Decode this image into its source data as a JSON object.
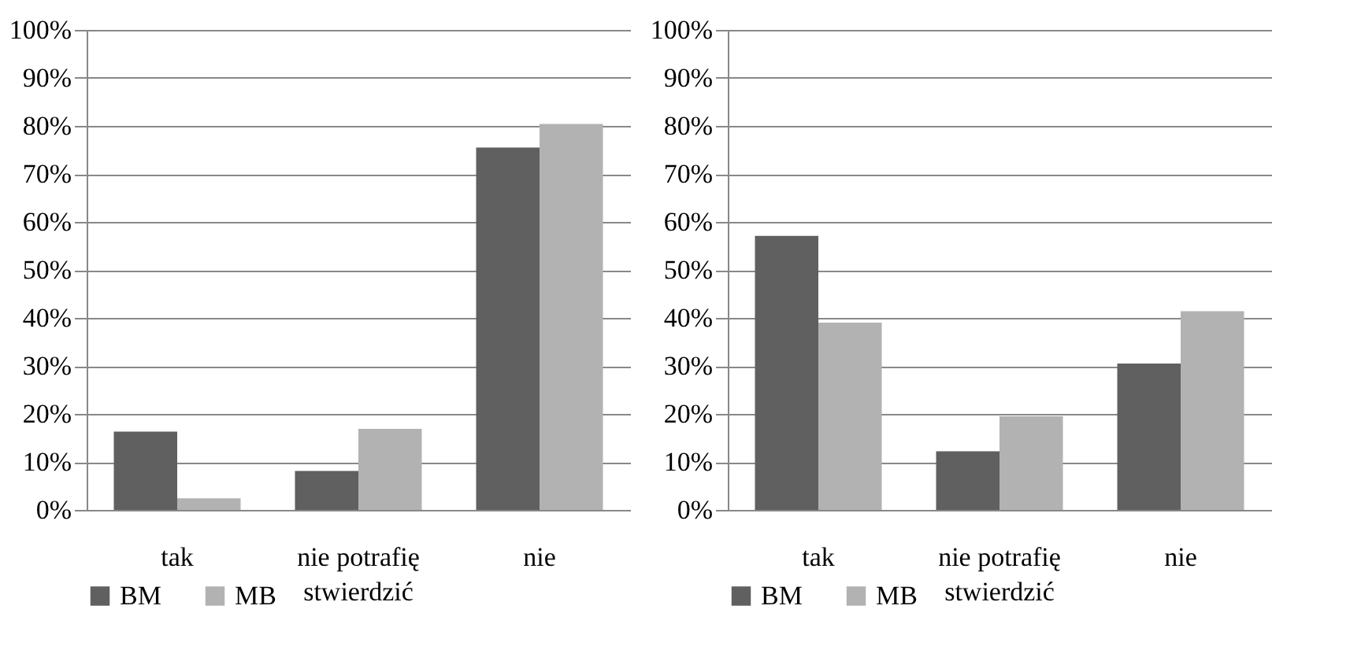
{
  "chart_data": [
    {
      "type": "bar",
      "categories": [
        "tak",
        "nie potrafię\nstwierdzić",
        "nie"
      ],
      "series": [
        {
          "name": "BM",
          "color": "#606060",
          "values": [
            16.3,
            8.1,
            75.5
          ]
        },
        {
          "name": "MB",
          "color": "#b2b2b2",
          "values": [
            2.4,
            16.9,
            80.4
          ]
        }
      ],
      "ylim": [
        0,
        100
      ],
      "yticks": [
        {
          "value": 0,
          "label": "0%"
        },
        {
          "value": 10,
          "label": "10%"
        },
        {
          "value": 20,
          "label": "20%"
        },
        {
          "value": 30,
          "label": "30%"
        },
        {
          "value": 40,
          "label": "40%"
        },
        {
          "value": 50,
          "label": "50%"
        },
        {
          "value": 60,
          "label": "60%"
        },
        {
          "value": 70,
          "label": "70%"
        },
        {
          "value": 80,
          "label": "80%"
        },
        {
          "value": 90,
          "label": "90%"
        },
        {
          "value": 100,
          "label": "100%"
        }
      ],
      "grid": "y",
      "legend": "bottom left"
    },
    {
      "type": "bar",
      "categories": [
        "tak",
        "nie potrafię\nstwierdzić",
        "nie"
      ],
      "series": [
        {
          "name": "BM",
          "color": "#606060",
          "values": [
            57.1,
            12.2,
            30.5
          ]
        },
        {
          "name": "MB",
          "color": "#b2b2b2",
          "values": [
            39.0,
            19.5,
            41.4
          ]
        }
      ],
      "ylim": [
        0,
        100
      ],
      "yticks": [
        {
          "value": 0,
          "label": "0%"
        },
        {
          "value": 10,
          "label": "10%"
        },
        {
          "value": 20,
          "label": "20%"
        },
        {
          "value": 30,
          "label": "30%"
        },
        {
          "value": 40,
          "label": "40%"
        },
        {
          "value": 50,
          "label": "50%"
        },
        {
          "value": 60,
          "label": "60%"
        },
        {
          "value": 70,
          "label": "70%"
        },
        {
          "value": 80,
          "label": "80%"
        },
        {
          "value": 90,
          "label": "90%"
        },
        {
          "value": 100,
          "label": "100%"
        }
      ],
      "grid": "y",
      "legend": "bottom left"
    }
  ]
}
